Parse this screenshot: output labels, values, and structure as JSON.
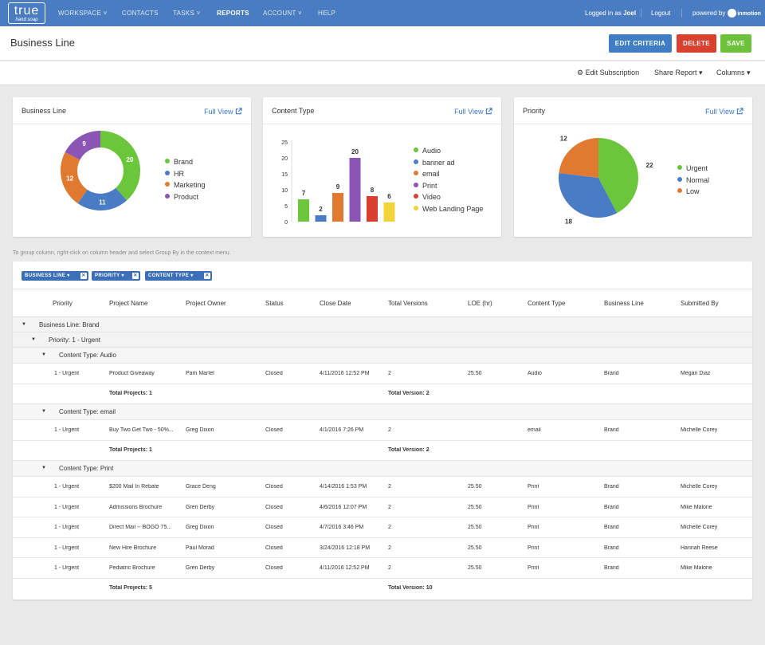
{
  "nav": {
    "logo_top": "true",
    "logo_bottom": "hand soap",
    "items": [
      "WORKSPACE ˅",
      "CONTACTS",
      "TASKS ˅",
      "REPORTS",
      "ACCOUNT ˅",
      "HELP"
    ],
    "logged_in_prefix": "Logged in as",
    "user": "Joel",
    "logout": "Logout",
    "powered_by": "powered by",
    "powered_brand": "inmotion"
  },
  "header": {
    "title": "Business Line",
    "edit_criteria": "EDIT CRITERIA",
    "delete": "DELETE",
    "save": "SAVE"
  },
  "subbar": {
    "edit_subscription": "Edit Subscription",
    "share_report": "Share Report ▾",
    "columns": "Columns ▾"
  },
  "colors": {
    "nav": "#4a7cc1",
    "edit": "#3f7ec4",
    "delete": "#d9412e",
    "save": "#6cc23b"
  },
  "cards": [
    {
      "title": "Business Line",
      "link": "Full View",
      "legend": [
        {
          "label": "Brand",
          "color": "#6cc63b"
        },
        {
          "label": "HR",
          "color": "#4a7cc6"
        },
        {
          "label": "Marketing",
          "color": "#e07a30"
        },
        {
          "label": "Product",
          "color": "#8a55b5"
        }
      ]
    },
    {
      "title": "Content Type",
      "link": "Full View",
      "legend": [
        {
          "label": "Audio",
          "color": "#6cc63b"
        },
        {
          "label": "banner ad",
          "color": "#4a7cc6"
        },
        {
          "label": "email",
          "color": "#e07a30"
        },
        {
          "label": "Print",
          "color": "#8a55b5"
        },
        {
          "label": "Video",
          "color": "#d9412e"
        },
        {
          "label": "Web Landing Page",
          "color": "#f0d43a"
        }
      ]
    },
    {
      "title": "Priority",
      "link": "Full View",
      "legend": [
        {
          "label": "Urgent",
          "color": "#6cc63b"
        },
        {
          "label": "Normal",
          "color": "#4a7cc6"
        },
        {
          "label": "Low",
          "color": "#e07a30"
        }
      ]
    }
  ],
  "chart_data": [
    {
      "type": "pie",
      "donut": true,
      "categories": [
        "Brand",
        "HR",
        "Marketing",
        "Product"
      ],
      "values": [
        20,
        11,
        12,
        9
      ],
      "colors": [
        "#6cc63b",
        "#4a7cc6",
        "#e07a30",
        "#8a55b5"
      ]
    },
    {
      "type": "bar",
      "categories": [
        "Audio",
        "banner ad",
        "email",
        "Print",
        "Video",
        "Web Landing Page"
      ],
      "values": [
        7,
        2,
        9,
        20,
        8,
        6
      ],
      "colors": [
        "#6cc63b",
        "#4a7cc6",
        "#e07a30",
        "#8a55b5",
        "#d9412e",
        "#f0d43a"
      ],
      "yticks": [
        0,
        5,
        10,
        15,
        20,
        25
      ],
      "ylim": [
        0,
        25
      ]
    },
    {
      "type": "pie",
      "categories": [
        "Urgent",
        "Normal",
        "Low"
      ],
      "values": [
        22,
        18,
        12
      ],
      "colors": [
        "#6cc63b",
        "#4a7cc6",
        "#e07a30"
      ]
    }
  ],
  "hint": "To group column, right-click on column header and select Group By in the context menu.",
  "chips": [
    "BUSINESS LINE ▾",
    "PRIORITY ▾",
    "CONTENT TYPE ▾"
  ],
  "columns": [
    "Priority",
    "Project Name",
    "Project Owner",
    "Status",
    "Close Date",
    "Total Versions",
    "LOE (hr)",
    "Content Type",
    "Business Line",
    "Submitted By"
  ],
  "groups": {
    "business_line": "Business Line: Brand",
    "priority": "Priority: 1 - Urgent"
  },
  "sections": [
    {
      "label": "Content Type: Audio",
      "rows": [
        [
          "1 - Urgent",
          "Product Giveaway",
          "Pam Martel",
          "Closed",
          "4/11/2016 12:52 PM",
          "2",
          "25.50",
          "Audio",
          "Brand",
          "Megan Diaz"
        ]
      ],
      "total_projects": "Total Projects: 1",
      "total_version": "Total Version: 2"
    },
    {
      "label": "Content Type: email",
      "rows": [
        [
          "1 - Urgent",
          "Buy Two Get Two - 50%...",
          "Greg Dixon",
          "Closed",
          "4/1/2016 7:26 PM",
          "2",
          "",
          "email",
          "Brand",
          "Michelle Corey"
        ]
      ],
      "total_projects": "Total Projects: 1",
      "total_version": "Total Version: 2"
    },
    {
      "label": "Content Type: Print",
      "rows": [
        [
          "1 - Urgent",
          "$200 Mail In Rebate",
          "Grace Deng",
          "Closed",
          "4/14/2016 1:53 PM",
          "2",
          "25.50",
          "Print",
          "Brand",
          "Michelle Corey"
        ],
        [
          "1 - Urgent",
          "Admissions Brochure",
          "Gren Derby",
          "Closed",
          "4/6/2016 12:07 PM",
          "2",
          "25.50",
          "Print",
          "Brand",
          "Mike Malone"
        ],
        [
          "1 - Urgent",
          "Direct Mail -- BOGO 75...",
          "Greg Dixon",
          "Closed",
          "4/7/2016 3:46 PM",
          "2",
          "25.50",
          "Print",
          "Brand",
          "Michelle Corey"
        ],
        [
          "1 - Urgent",
          "New Hire Brochure",
          "Paul Morad",
          "Closed",
          "3/24/2016 12:18 PM",
          "2",
          "25.50",
          "Print",
          "Brand",
          "Hannah Reese"
        ],
        [
          "1 - Urgent",
          "Pediatric Brochure",
          "Gren Derby",
          "Closed",
          "4/11/2016 12:52 PM",
          "2",
          "25.50",
          "Print",
          "Brand",
          "Mike Malone"
        ]
      ],
      "total_projects": "Total Projects: 5",
      "total_version": "Total Version: 10"
    }
  ]
}
